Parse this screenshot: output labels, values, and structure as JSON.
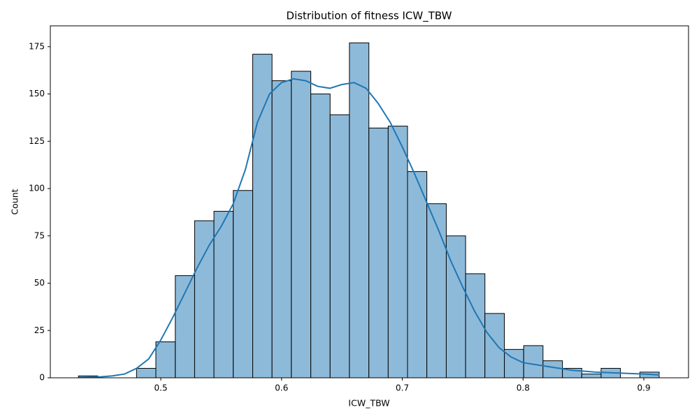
{
  "chart_data": {
    "type": "histogram",
    "title": "Distribution of fitness ICW_TBW",
    "xlabel": "ICW_TBW",
    "ylabel": "Count",
    "bins": [
      0.4318,
      0.4478,
      0.4639,
      0.4799,
      0.4959,
      0.512,
      0.528,
      0.544,
      0.56,
      0.5761,
      0.5921,
      0.6081,
      0.6242,
      0.6402,
      0.6562,
      0.6723,
      0.6883,
      0.7043,
      0.7203,
      0.7364,
      0.7524,
      0.7684,
      0.7845,
      0.8005,
      0.8165,
      0.8326,
      0.8486,
      0.8646,
      0.8806,
      0.8967,
      0.9127
    ],
    "values": [
      1,
      0,
      0,
      5,
      19,
      54,
      83,
      88,
      99,
      171,
      157,
      162,
      150,
      139,
      177,
      132,
      133,
      109,
      92,
      75,
      55,
      34,
      15,
      17,
      9,
      5,
      2,
      5,
      0,
      3
    ],
    "color": "#8ebad9",
    "edgecolor": "#000000",
    "kde": {
      "color": "#1f77b4",
      "x": [
        0.432,
        0.44,
        0.45,
        0.46,
        0.47,
        0.48,
        0.49,
        0.5,
        0.51,
        0.52,
        0.53,
        0.54,
        0.55,
        0.56,
        0.57,
        0.58,
        0.59,
        0.6,
        0.61,
        0.62,
        0.63,
        0.64,
        0.65,
        0.66,
        0.67,
        0.68,
        0.69,
        0.7,
        0.71,
        0.72,
        0.73,
        0.74,
        0.75,
        0.76,
        0.77,
        0.78,
        0.79,
        0.8,
        0.81,
        0.82,
        0.84,
        0.86,
        0.88,
        0.9,
        0.913
      ],
      "values": [
        0.2,
        0.3,
        0.5,
        1,
        2,
        5,
        10,
        20,
        32,
        45,
        58,
        70,
        80,
        92,
        110,
        135,
        150,
        156,
        158,
        157,
        154,
        153,
        155,
        156,
        153,
        145,
        135,
        122,
        108,
        93,
        78,
        62,
        48,
        35,
        24,
        16,
        11,
        8,
        7,
        6,
        4,
        3,
        2.5,
        2,
        1.5
      ]
    },
    "xlim": [
      0.4085,
      0.937
    ],
    "ylim": [
      0,
      186
    ],
    "xticks": [
      0.5,
      0.6,
      0.7,
      0.8,
      0.9
    ],
    "yticks": [
      0,
      25,
      50,
      75,
      100,
      125,
      150,
      175
    ]
  }
}
